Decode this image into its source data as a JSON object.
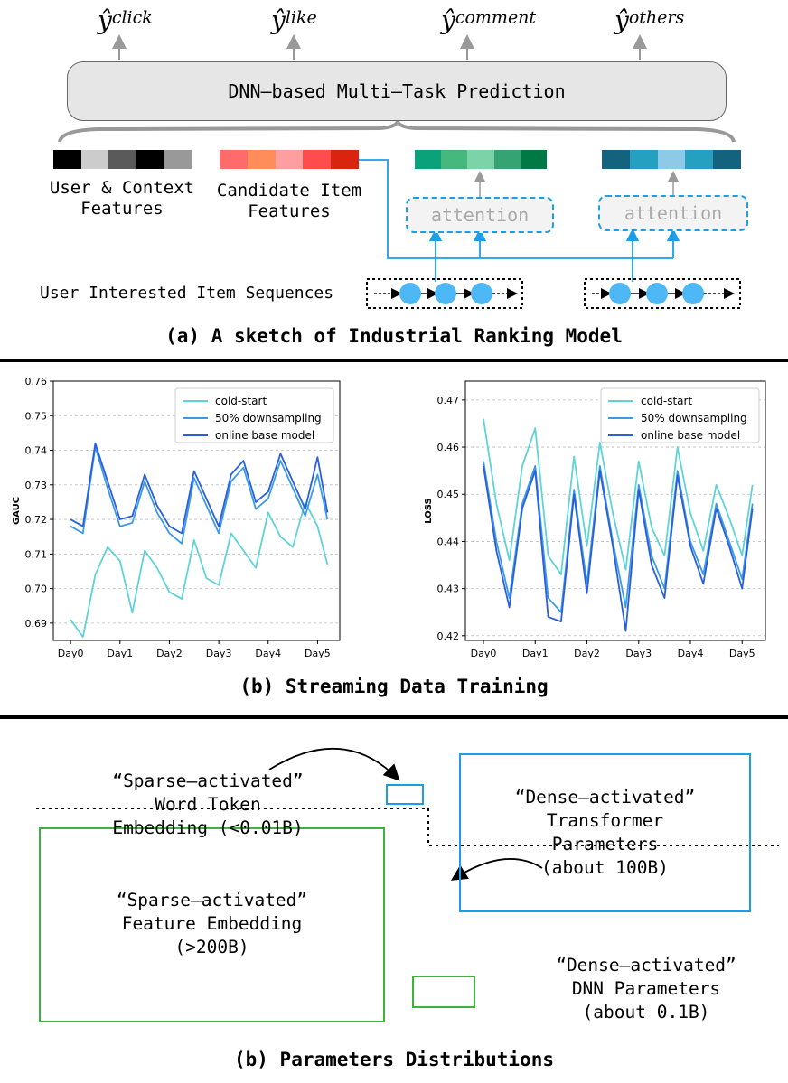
{
  "section_a": {
    "outputs": [
      {
        "base": "ŷ",
        "sup": "click"
      },
      {
        "base": "ŷ",
        "sup": "like"
      },
      {
        "base": "ŷ",
        "sup": "comment"
      },
      {
        "base": "ŷ",
        "sup": "others"
      }
    ],
    "dnn_label": "DNN–based Multi–Task Prediction",
    "user_context_label_1": "User & Context",
    "user_context_label_2": "Features",
    "candidate_label_1": "Candidate Item",
    "candidate_label_2": "Features",
    "attention_label": "attention",
    "sequences_label": "User Interested Item Sequences",
    "caption": "(a) A sketch of Industrial Ranking Model",
    "colors": {
      "user": [
        "#000000",
        "#cccccc",
        "#5a5a5a",
        "#000000",
        "#999999"
      ],
      "candidate": [
        "#ff6b6b",
        "#ff8c5a",
        "#ff9e9e",
        "#ff4d4d",
        "#d92510"
      ],
      "green": [
        "#0aa379",
        "#47b87d",
        "#7dd3a8",
        "#36a374",
        "#007a45"
      ],
      "teal": [
        "#15627f",
        "#25a0c0",
        "#8fc9e8",
        "#25a0c0",
        "#15627f"
      ],
      "accent": "#1a9ee8",
      "node": "#4db8f5"
    }
  },
  "section_b": {
    "caption": "(b) Streaming Data Training",
    "legend": [
      "cold-start",
      "50% downsampling",
      "online base model"
    ],
    "series_colors": [
      "#5fd3d6",
      "#3a9ae8",
      "#2a5fdb"
    ],
    "left_chart": {
      "ylabel": "GAUC",
      "yticks": [
        "0.76",
        "0.75",
        "0.74",
        "0.73",
        "0.72",
        "0.71",
        "0.70",
        "0.69"
      ],
      "xticks": [
        "Day0",
        "Day1",
        "Day2",
        "Day3",
        "Day4",
        "Day5"
      ]
    },
    "right_chart": {
      "ylabel": "LOSS",
      "yticks": [
        "0.47",
        "0.46",
        "0.45",
        "0.44",
        "0.43",
        "0.42"
      ],
      "xticks": [
        "Day0",
        "Day1",
        "Day2",
        "Day3",
        "Day4",
        "Day5"
      ]
    }
  },
  "section_c": {
    "caption": "(b) Parameters Distributions",
    "word_token": [
      "“Sparse–activated”",
      "Word Token",
      "Embedding (<0.01B)"
    ],
    "transformer": [
      "“Dense–activated”",
      "Transformer",
      "Parameters",
      "(about 100B)"
    ],
    "feature_embedding": [
      "“Sparse–activated”",
      "Feature Embedding",
      "(>200B)"
    ],
    "dnn_params": [
      "“Dense–activated”",
      "DNN Parameters",
      "(about 0.1B)"
    ],
    "colors": {
      "blue": "#1a9ee8",
      "green": "#3ab53a"
    }
  },
  "chart_data": [
    {
      "type": "line",
      "ylabel": "GAUC",
      "xlabel": "",
      "ylim": [
        0.685,
        0.76
      ],
      "x": [
        0,
        0.25,
        0.5,
        0.75,
        1,
        1.25,
        1.5,
        1.75,
        2,
        2.25,
        2.5,
        2.75,
        3,
        3.25,
        3.5,
        3.75,
        4,
        4.25,
        4.5,
        4.75,
        5,
        5.2
      ],
      "xticks": [
        "Day0",
        "Day1",
        "Day2",
        "Day3",
        "Day4",
        "Day5"
      ],
      "legend": "top-right",
      "grid": true,
      "series": [
        {
          "name": "cold-start",
          "values": [
            0.691,
            0.686,
            0.704,
            0.712,
            0.708,
            0.693,
            0.711,
            0.706,
            0.699,
            0.697,
            0.714,
            0.703,
            0.701,
            0.716,
            0.711,
            0.706,
            0.722,
            0.715,
            0.712,
            0.725,
            0.718,
            0.707
          ]
        },
        {
          "name": "50% downsampling",
          "values": [
            0.718,
            0.716,
            0.741,
            0.729,
            0.718,
            0.719,
            0.731,
            0.722,
            0.716,
            0.713,
            0.732,
            0.724,
            0.716,
            0.731,
            0.735,
            0.723,
            0.726,
            0.737,
            0.729,
            0.721,
            0.733,
            0.72
          ]
        },
        {
          "name": "online base model",
          "values": [
            0.72,
            0.718,
            0.742,
            0.731,
            0.72,
            0.721,
            0.733,
            0.724,
            0.718,
            0.716,
            0.734,
            0.726,
            0.718,
            0.733,
            0.737,
            0.725,
            0.728,
            0.739,
            0.731,
            0.723,
            0.738,
            0.722
          ]
        }
      ]
    },
    {
      "type": "line",
      "ylabel": "LOSS",
      "xlabel": "",
      "ylim": [
        0.419,
        0.474
      ],
      "x": [
        0,
        0.25,
        0.5,
        0.75,
        1,
        1.25,
        1.5,
        1.75,
        2,
        2.25,
        2.5,
        2.75,
        3,
        3.25,
        3.5,
        3.75,
        4,
        4.25,
        4.5,
        4.75,
        5,
        5.2
      ],
      "xticks": [
        "Day0",
        "Day1",
        "Day2",
        "Day3",
        "Day4",
        "Day5"
      ],
      "legend": "top-right",
      "grid": true,
      "series": [
        {
          "name": "cold-start",
          "values": [
            0.466,
            0.448,
            0.436,
            0.456,
            0.464,
            0.437,
            0.433,
            0.458,
            0.439,
            0.461,
            0.446,
            0.434,
            0.457,
            0.443,
            0.437,
            0.46,
            0.446,
            0.438,
            0.452,
            0.445,
            0.437,
            0.452
          ]
        },
        {
          "name": "50% downsampling",
          "values": [
            0.457,
            0.44,
            0.428,
            0.448,
            0.456,
            0.428,
            0.425,
            0.451,
            0.431,
            0.456,
            0.44,
            0.426,
            0.452,
            0.437,
            0.43,
            0.455,
            0.44,
            0.433,
            0.448,
            0.44,
            0.432,
            0.448
          ]
        },
        {
          "name": "online base model",
          "values": [
            0.456,
            0.438,
            0.426,
            0.447,
            0.455,
            0.424,
            0.423,
            0.45,
            0.429,
            0.455,
            0.439,
            0.421,
            0.451,
            0.435,
            0.428,
            0.454,
            0.439,
            0.431,
            0.447,
            0.439,
            0.43,
            0.447
          ]
        }
      ]
    }
  ]
}
